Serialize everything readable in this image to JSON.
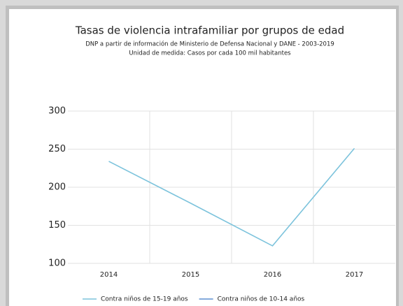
{
  "chart_data": {
    "type": "line",
    "title": "Tasas de violencia intrafamiliar por grupos de edad",
    "subtitle": "DNP a partir de información de Ministerio de Defensa Nacional y DANE - 2003-2019",
    "subtitle2": "Unidad de medida: Casos por cada 100 mil habitantes",
    "categories": [
      "2014",
      "2015",
      "2016",
      "2017"
    ],
    "series": [
      {
        "name": "Contra niños de 15-19 años",
        "color": "#7cc3dc",
        "values": [
          234,
          179,
          123,
          251
        ]
      },
      {
        "name": "Contra niños de 10-14 años",
        "color": "#5b8fd0",
        "values": [
          null,
          null,
          null,
          null
        ]
      }
    ],
    "ylim": [
      100,
      300
    ],
    "yticks": [
      100,
      150,
      200,
      250,
      300
    ],
    "grid": true,
    "legend": "bottom"
  }
}
